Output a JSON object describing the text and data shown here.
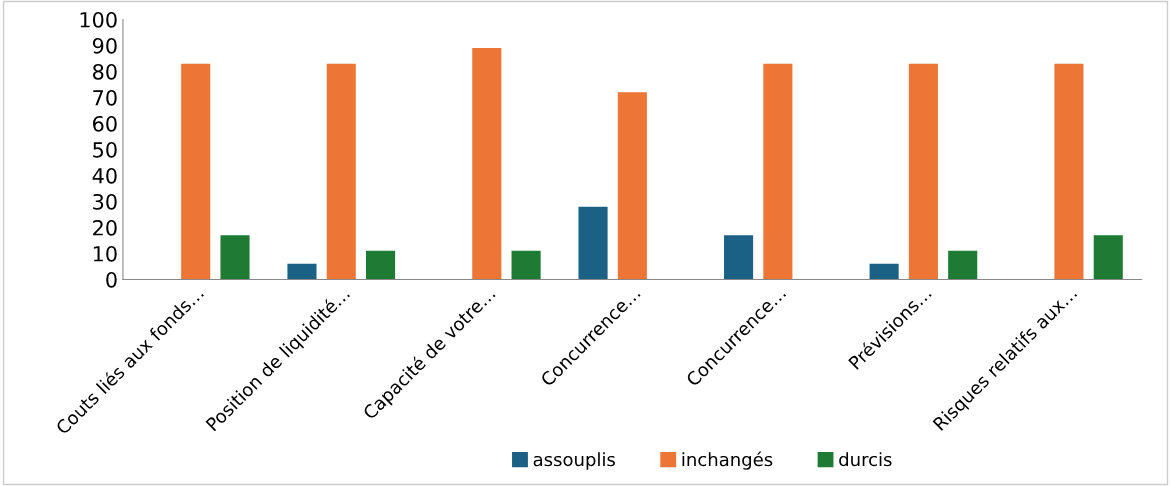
{
  "chart_data": {
    "type": "bar",
    "categories": [
      "Couts liés aux fonds…",
      "Position de liquidité…",
      "Capacité de votre…",
      "Concurrence…",
      "Concurrence…",
      "Prévisions…",
      "Risques relatifs aux…"
    ],
    "series": [
      {
        "name": "assouplis",
        "color": "#1a6185",
        "values": [
          0,
          6,
          0,
          28,
          17,
          6,
          0
        ]
      },
      {
        "name": "inchangés",
        "color": "#ed7636",
        "values": [
          83,
          83,
          89,
          72,
          83,
          83,
          83
        ]
      },
      {
        "name": "durcis",
        "color": "#1e7b34",
        "values": [
          17,
          11,
          11,
          0,
          0,
          11,
          17
        ]
      }
    ],
    "ylim": [
      0,
      100
    ],
    "yticks": [
      0,
      10,
      20,
      30,
      40,
      50,
      60,
      70,
      80,
      90,
      100
    ],
    "grid": false,
    "legend": "bottom"
  }
}
